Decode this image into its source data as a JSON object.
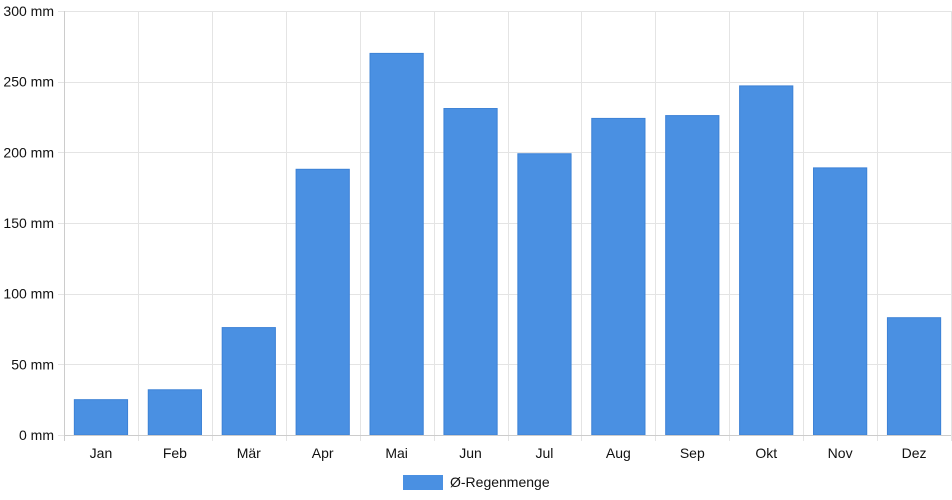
{
  "chart_data": {
    "type": "bar",
    "categories": [
      "Jan",
      "Feb",
      "Mär",
      "Apr",
      "Mai",
      "Jun",
      "Jul",
      "Aug",
      "Sep",
      "Okt",
      "Nov",
      "Dez"
    ],
    "series": [
      {
        "name": "Ø-Regenmenge",
        "values": [
          25,
          32,
          76,
          188,
          270,
          231,
          199,
          224,
          226,
          247,
          189,
          83
        ],
        "color": "#4a90e2"
      }
    ],
    "ylim": [
      0,
      300
    ],
    "y_ticks": [
      "0 mm",
      "50 mm",
      "100 mm",
      "150 mm",
      "200 mm",
      "250 mm",
      "300 mm"
    ],
    "y_tick_values": [
      0,
      50,
      100,
      150,
      200,
      250,
      300
    ],
    "grid": true,
    "legend_position": "bottom-center"
  }
}
